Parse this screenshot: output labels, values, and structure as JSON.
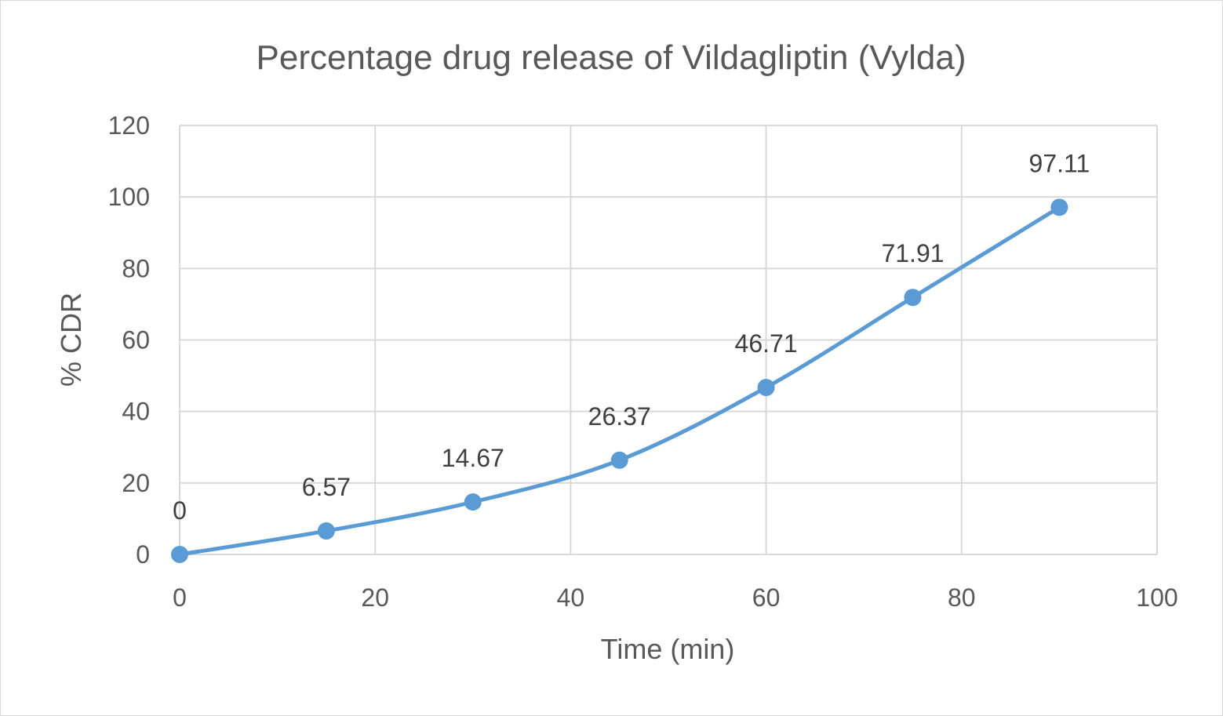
{
  "chart_data": {
    "type": "scatter",
    "title": "Percentage drug release of Vildagliptin (Vylda)",
    "xlabel": "Time (min)",
    "ylabel": "% CDR",
    "xlim": [
      0,
      100
    ],
    "ylim": [
      0,
      120
    ],
    "x_ticks": [
      0,
      20,
      40,
      60,
      80,
      100
    ],
    "y_ticks": [
      0,
      20,
      40,
      60,
      80,
      100,
      120
    ],
    "grid": true,
    "smooth_line": true,
    "series": [
      {
        "x": [
          0,
          15,
          30,
          45,
          60,
          75,
          90
        ],
        "y": [
          0,
          6.57,
          14.67,
          26.37,
          46.71,
          71.91,
          97.11
        ],
        "labels": [
          "0",
          "6.57",
          "14.67",
          "26.37",
          "46.71",
          "71.91",
          "97.11"
        ],
        "color": "#5b9bd5"
      }
    ]
  }
}
